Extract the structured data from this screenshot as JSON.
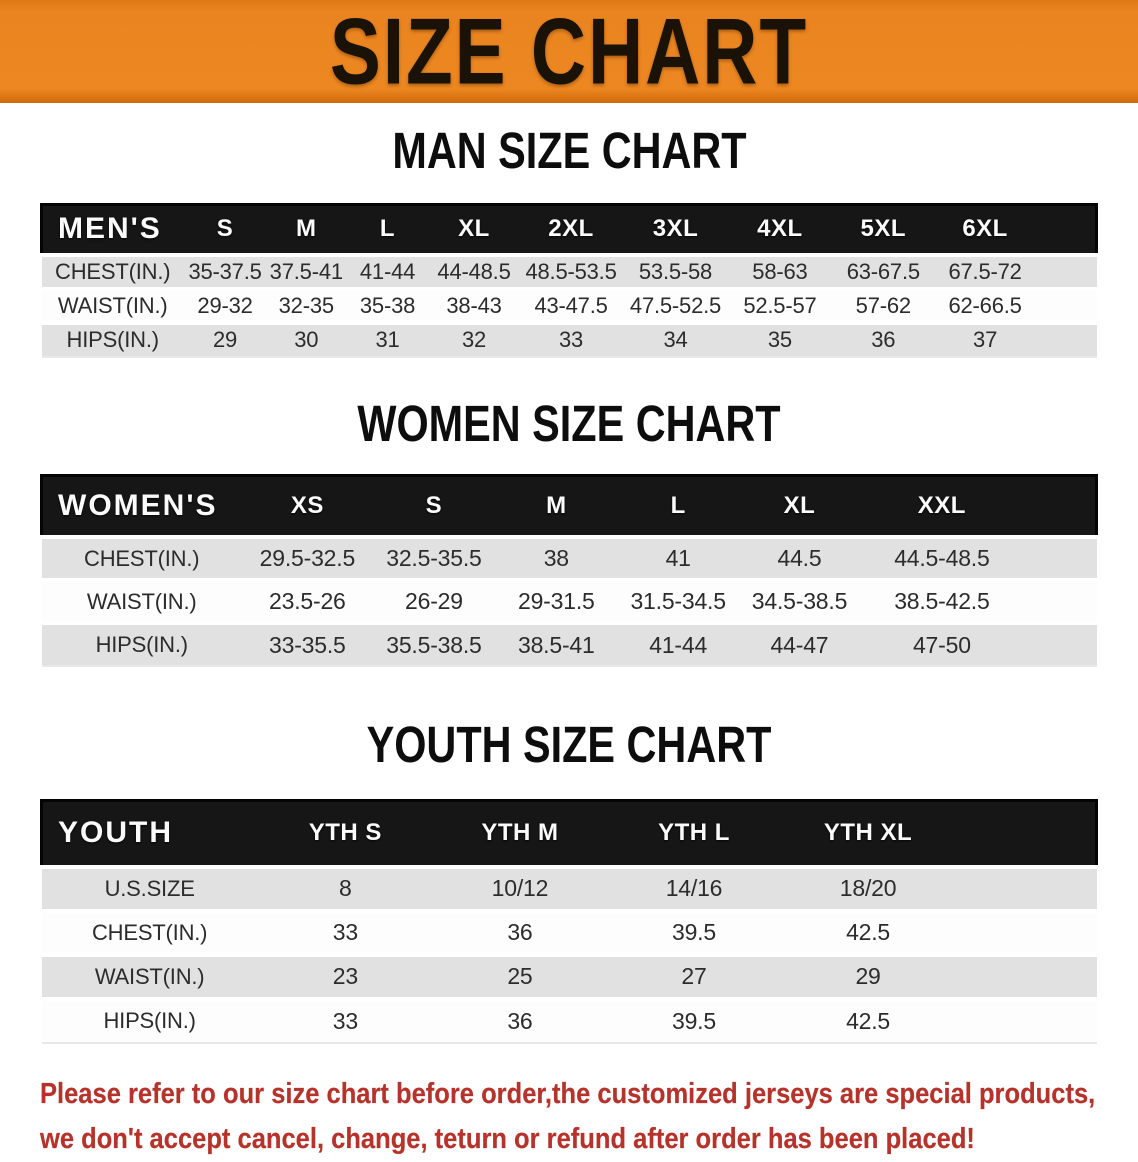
{
  "banner": {
    "title": "SIZE CHART",
    "bg_color": "#EA8420",
    "text_color": "#1B1207"
  },
  "sections": [
    {
      "heading": "MAN SIZE CHART",
      "corner_label": "MEN'S",
      "columns": [
        "S",
        "M",
        "L",
        "XL",
        "2XL",
        "3XL",
        "4XL",
        "5XL",
        "6XL"
      ],
      "rows": [
        {
          "label": "CHEST(IN.)",
          "values": [
            "35-37.5",
            "37.5-41",
            "41-44",
            "44-48.5",
            "48.5-53.5",
            "53.5-58",
            "58-63",
            "63-67.5",
            "67.5-72"
          ]
        },
        {
          "label": "WAIST(IN.)",
          "values": [
            "29-32",
            "32-35",
            "35-38",
            "38-43",
            "43-47.5",
            "47.5-52.5",
            "52.5-57",
            "57-62",
            "62-66.5"
          ]
        },
        {
          "label": "HIPS(IN.)",
          "values": [
            "29",
            "30",
            "31",
            "32",
            "33",
            "34",
            "35",
            "36",
            "37"
          ]
        }
      ]
    },
    {
      "heading": "WOMEN SIZE CHART",
      "corner_label": "WOMEN'S",
      "columns": [
        "XS",
        "S",
        "M",
        "L",
        "XL",
        "XXL"
      ],
      "rows": [
        {
          "label": "CHEST(IN.)",
          "values": [
            "29.5-32.5",
            "32.5-35.5",
            "38",
            "41",
            "44.5",
            "44.5-48.5"
          ]
        },
        {
          "label": "WAIST(IN.)",
          "values": [
            "23.5-26",
            "26-29",
            "29-31.5",
            "31.5-34.5",
            "34.5-38.5",
            "38.5-42.5"
          ]
        },
        {
          "label": "HIPS(IN.)",
          "values": [
            "33-35.5",
            "35.5-38.5",
            "38.5-41",
            "41-44",
            "44-47",
            "47-50"
          ]
        }
      ]
    },
    {
      "heading": "YOUTH SIZE CHART",
      "corner_label": "YOUTH",
      "columns": [
        "YTH S",
        "YTH M",
        "YTH L",
        "YTH XL"
      ],
      "rows": [
        {
          "label": "U.S.SIZE",
          "values": [
            "8",
            "10/12",
            "14/16",
            "18/20"
          ]
        },
        {
          "label": "CHEST(IN.)",
          "values": [
            "33",
            "36",
            "39.5",
            "42.5"
          ]
        },
        {
          "label": "WAIST(IN.)",
          "values": [
            "23",
            "25",
            "27",
            "29"
          ]
        },
        {
          "label": "HIPS(IN.)",
          "values": [
            "33",
            "36",
            "39.5",
            "42.5"
          ]
        }
      ]
    }
  ],
  "footer": {
    "line1": "Please refer to our size chart before order,the customized jerseys are special products,",
    "line2": "we don't accept cancel, change, teturn or refund after order has been placed!",
    "text_color": "#B5332B"
  },
  "colors": {
    "header_band": "#161616",
    "header_text": "#FBFBFB",
    "row_gray": "#E1E1E2",
    "row_white": "#FDFDFD",
    "body_text": "#2C2C2C",
    "page_bg": "#FFFFFF"
  }
}
